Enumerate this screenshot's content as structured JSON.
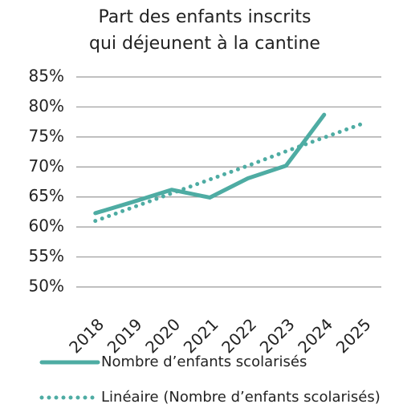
{
  "chart_data": {
    "type": "line",
    "title": [
      "Part des enfants inscrits",
      "qui déjeunent à la cantine"
    ],
    "categories": [
      "2018",
      "2019",
      "2020",
      "2021",
      "2022",
      "2023",
      "2024",
      "2025"
    ],
    "series": [
      {
        "name": "Nombre d’enfants scolarisés",
        "color": "#4eaca3",
        "style": "solid",
        "values": [
          62.3,
          64.2,
          66.2,
          64.9,
          68.1,
          70.2,
          78.7,
          null
        ]
      },
      {
        "name": "Linéaire (Nombre d’enfants scolarisés)",
        "color": "#4eaca3",
        "style": "dotted",
        "values": [
          61.0,
          63.3,
          65.6,
          67.9,
          70.2,
          72.6,
          74.9,
          77.2
        ]
      }
    ],
    "ylim": [
      50,
      85
    ],
    "yticks": [
      {
        "value": 50,
        "label": "50%"
      },
      {
        "value": 55,
        "label": "55%"
      },
      {
        "value": 60,
        "label": "60%"
      },
      {
        "value": 65,
        "label": "65%"
      },
      {
        "value": 70,
        "label": "70%"
      },
      {
        "value": 75,
        "label": "75%"
      },
      {
        "value": 80,
        "label": "80%"
      },
      {
        "value": 85,
        "label": "85%"
      }
    ],
    "grid": true,
    "legend": "bottom"
  }
}
